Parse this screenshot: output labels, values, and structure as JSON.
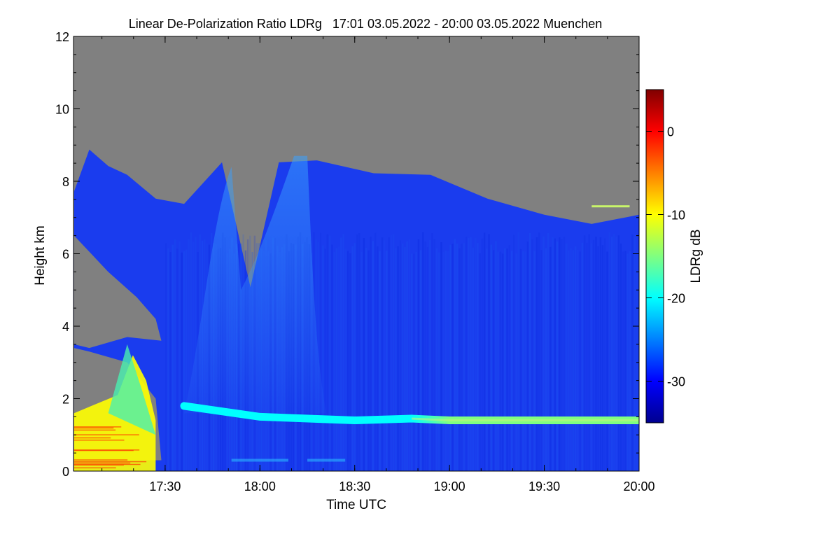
{
  "chart_data": {
    "type": "heatmap",
    "title": "Linear De-Polarization Ratio LDRg   17:01 03.05.2022 - 20:00 03.05.2022 Muenchen",
    "xlabel": "Time UTC",
    "ylabel": "Height km",
    "colorbar_label": "LDRg dB",
    "x_range_hours": [
      17.0167,
      20.0
    ],
    "x_ticks": [
      {
        "value": 17.5,
        "label": "17:30"
      },
      {
        "value": 18.0,
        "label": "18:00"
      },
      {
        "value": 18.5,
        "label": "18:30"
      },
      {
        "value": 19.0,
        "label": "19:00"
      },
      {
        "value": 19.5,
        "label": "19:30"
      },
      {
        "value": 20.0,
        "label": "20:00"
      }
    ],
    "y_range_km": [
      0,
      12
    ],
    "y_ticks": [
      {
        "value": 0,
        "label": "0"
      },
      {
        "value": 2,
        "label": "2"
      },
      {
        "value": 4,
        "label": "4"
      },
      {
        "value": 6,
        "label": "6"
      },
      {
        "value": 8,
        "label": "8"
      },
      {
        "value": 10,
        "label": "10"
      },
      {
        "value": 12,
        "label": "12"
      }
    ],
    "colorbar_range_db": [
      -35,
      5
    ],
    "colorbar_ticks": [
      {
        "value": 0,
        "label": "0"
      },
      {
        "value": -10,
        "label": "-10"
      },
      {
        "value": -20,
        "label": "-20"
      },
      {
        "value": -30,
        "label": "-30"
      }
    ],
    "colors": {
      "no_signal": "#808080",
      "colormap": [
        "#00008f",
        "#0000ff",
        "#0080ff",
        "#00ffff",
        "#80ff80",
        "#ffff00",
        "#ff8000",
        "#ff0000",
        "#800000"
      ]
    },
    "features": [
      {
        "name": "Cloud top (signal boundary)",
        "times_h": [
          17.02,
          17.1,
          17.2,
          17.3,
          17.45,
          17.6,
          17.8,
          17.95,
          18.1,
          18.3,
          18.6,
          18.9,
          19.2,
          19.5,
          19.75,
          20.0
        ],
        "heights_km": [
          7.8,
          8.8,
          8.5,
          8.1,
          7.6,
          7.3,
          8.6,
          5.0,
          8.6,
          8.5,
          8.3,
          8.1,
          7.6,
          7.0,
          6.9,
          7.0
        ]
      },
      {
        "name": "Depolarization layer",
        "times_h": [
          17.6,
          18.0,
          18.5,
          18.8,
          19.0,
          19.3,
          19.6,
          20.0
        ],
        "heights_km": [
          1.8,
          1.5,
          1.4,
          1.45,
          1.4,
          1.4,
          1.4,
          1.4
        ],
        "ldr_db": [
          -22,
          -21,
          -22,
          -19,
          -16,
          -15,
          -15,
          -16
        ]
      },
      {
        "name": "High depolarization region",
        "times_h": [
          17.02,
          17.45
        ],
        "heights_km": [
          0.0,
          3.5
        ],
        "ldr_db": -10
      }
    ]
  }
}
